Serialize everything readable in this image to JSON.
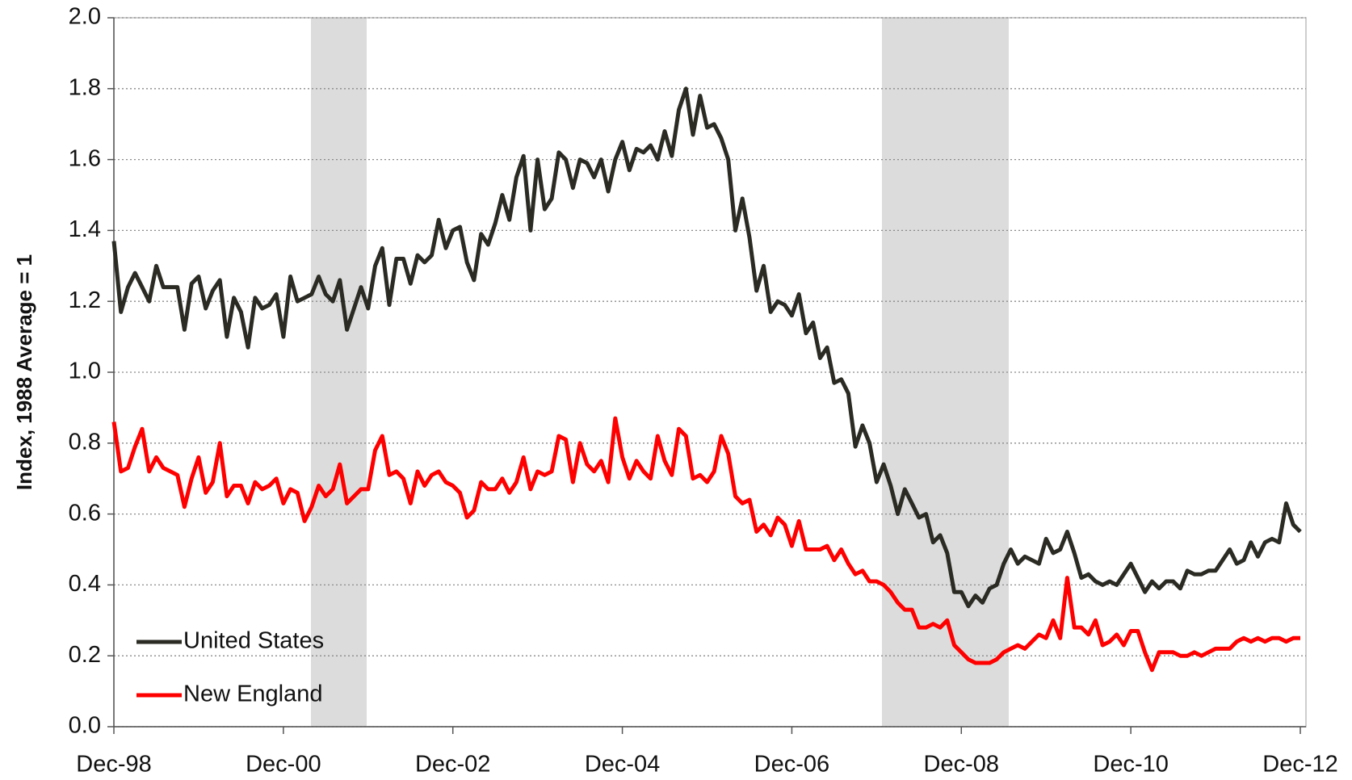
{
  "chart_data": {
    "type": "line",
    "y_label": "Index, 1988 Average = 1",
    "categories": [
      "Dec-98",
      null,
      null,
      null,
      null,
      null,
      null,
      null,
      null,
      null,
      null,
      null,
      null,
      null,
      null,
      null,
      null,
      null,
      null,
      null,
      null,
      null,
      null,
      null,
      "Dec-00",
      null,
      null,
      null,
      null,
      null,
      null,
      null,
      null,
      null,
      null,
      null,
      null,
      null,
      null,
      null,
      null,
      null,
      null,
      null,
      null,
      null,
      null,
      null,
      "Dec-02",
      null,
      null,
      null,
      null,
      null,
      null,
      null,
      null,
      null,
      null,
      null,
      null,
      null,
      null,
      null,
      null,
      null,
      null,
      null,
      null,
      null,
      null,
      null,
      "Dec-04",
      null,
      null,
      null,
      null,
      null,
      null,
      null,
      null,
      null,
      null,
      null,
      null,
      null,
      null,
      null,
      null,
      null,
      null,
      null,
      null,
      null,
      null,
      null,
      "Dec-06",
      null,
      null,
      null,
      null,
      null,
      null,
      null,
      null,
      null,
      null,
      null,
      null,
      null,
      null,
      null,
      null,
      null,
      null,
      null,
      null,
      null,
      null,
      null,
      "Dec-08",
      null,
      null,
      null,
      null,
      null,
      null,
      null,
      null,
      null,
      null,
      null,
      null,
      null,
      null,
      null,
      null,
      null,
      null,
      null,
      null,
      null,
      null,
      null,
      "Dec-10",
      null,
      null,
      null,
      null,
      null,
      null,
      null,
      null,
      null,
      null,
      null,
      null,
      null,
      null,
      null,
      null,
      null,
      null,
      null,
      null,
      null,
      null,
      null,
      "Dec-12"
    ],
    "series": [
      {
        "name": "United States",
        "color": "#2b2b24",
        "values": [
          1.37,
          1.17,
          1.24,
          1.28,
          1.24,
          1.2,
          1.3,
          1.24,
          1.24,
          1.24,
          1.12,
          1.25,
          1.27,
          1.18,
          1.23,
          1.26,
          1.1,
          1.21,
          1.17,
          1.07,
          1.21,
          1.18,
          1.19,
          1.22,
          1.1,
          1.27,
          1.2,
          1.21,
          1.22,
          1.27,
          1.22,
          1.2,
          1.26,
          1.12,
          1.18,
          1.24,
          1.18,
          1.3,
          1.35,
          1.19,
          1.32,
          1.32,
          1.25,
          1.33,
          1.31,
          1.33,
          1.43,
          1.35,
          1.4,
          1.41,
          1.31,
          1.26,
          1.39,
          1.36,
          1.42,
          1.5,
          1.43,
          1.55,
          1.61,
          1.4,
          1.6,
          1.46,
          1.49,
          1.62,
          1.6,
          1.52,
          1.6,
          1.59,
          1.55,
          1.6,
          1.51,
          1.6,
          1.65,
          1.57,
          1.63,
          1.62,
          1.64,
          1.6,
          1.68,
          1.61,
          1.74,
          1.8,
          1.67,
          1.78,
          1.69,
          1.7,
          1.66,
          1.6,
          1.4,
          1.49,
          1.38,
          1.23,
          1.3,
          1.17,
          1.2,
          1.19,
          1.16,
          1.22,
          1.11,
          1.14,
          1.04,
          1.07,
          0.97,
          0.98,
          0.94,
          0.79,
          0.85,
          0.8,
          0.69,
          0.74,
          0.68,
          0.6,
          0.67,
          0.63,
          0.59,
          0.6,
          0.52,
          0.54,
          0.49,
          0.38,
          0.38,
          0.34,
          0.37,
          0.35,
          0.39,
          0.4,
          0.46,
          0.5,
          0.46,
          0.48,
          0.47,
          0.46,
          0.53,
          0.49,
          0.5,
          0.55,
          0.49,
          0.42,
          0.43,
          0.41,
          0.4,
          0.41,
          0.4,
          0.43,
          0.46,
          0.42,
          0.38,
          0.41,
          0.39,
          0.41,
          0.41,
          0.39,
          0.44,
          0.43,
          0.43,
          0.44,
          0.44,
          0.47,
          0.5,
          0.46,
          0.47,
          0.52,
          0.48,
          0.52,
          0.53,
          0.52,
          0.63,
          0.57,
          0.55
        ]
      },
      {
        "name": "New England",
        "color": "#ff0000",
        "values": [
          0.86,
          0.72,
          0.73,
          0.79,
          0.84,
          0.72,
          0.76,
          0.73,
          0.72,
          0.71,
          0.62,
          0.7,
          0.76,
          0.66,
          0.69,
          0.8,
          0.65,
          0.68,
          0.68,
          0.63,
          0.69,
          0.67,
          0.68,
          0.7,
          0.63,
          0.67,
          0.66,
          0.58,
          0.62,
          0.68,
          0.65,
          0.67,
          0.74,
          0.63,
          0.65,
          0.67,
          0.67,
          0.78,
          0.82,
          0.71,
          0.72,
          0.7,
          0.63,
          0.72,
          0.68,
          0.71,
          0.72,
          0.69,
          0.68,
          0.66,
          0.59,
          0.61,
          0.69,
          0.67,
          0.67,
          0.7,
          0.66,
          0.69,
          0.76,
          0.67,
          0.72,
          0.71,
          0.72,
          0.82,
          0.81,
          0.69,
          0.8,
          0.74,
          0.72,
          0.75,
          0.69,
          0.87,
          0.76,
          0.7,
          0.75,
          0.72,
          0.7,
          0.82,
          0.75,
          0.71,
          0.84,
          0.82,
          0.7,
          0.71,
          0.69,
          0.72,
          0.82,
          0.77,
          0.65,
          0.63,
          0.64,
          0.55,
          0.57,
          0.54,
          0.59,
          0.57,
          0.51,
          0.58,
          0.5,
          0.5,
          0.5,
          0.51,
          0.47,
          0.5,
          0.46,
          0.43,
          0.44,
          0.41,
          0.41,
          0.4,
          0.38,
          0.35,
          0.33,
          0.33,
          0.28,
          0.28,
          0.29,
          0.28,
          0.3,
          0.23,
          0.21,
          0.19,
          0.18,
          0.18,
          0.18,
          0.19,
          0.21,
          0.22,
          0.23,
          0.22,
          0.24,
          0.26,
          0.25,
          0.3,
          0.25,
          0.42,
          0.28,
          0.28,
          0.26,
          0.3,
          0.23,
          0.24,
          0.26,
          0.23,
          0.27,
          0.27,
          0.21,
          0.16,
          0.21,
          0.21,
          0.21,
          0.2,
          0.2,
          0.21,
          0.2,
          0.21,
          0.22,
          0.22,
          0.22,
          0.24,
          0.25,
          0.24,
          0.25,
          0.24,
          0.25,
          0.25,
          0.24,
          0.25,
          0.25
        ]
      }
    ],
    "ylim": [
      0,
      2
    ],
    "yticks": [
      {
        "value": 0,
        "label": "0.0"
      },
      0.2,
      0.4,
      0.6,
      0.8,
      {
        "value": 1,
        "label": "1.0"
      },
      1.2,
      1.4,
      1.6,
      1.8,
      {
        "value": 2,
        "label": "2.0"
      }
    ],
    "grid": true,
    "legend": "lower left"
  }
}
